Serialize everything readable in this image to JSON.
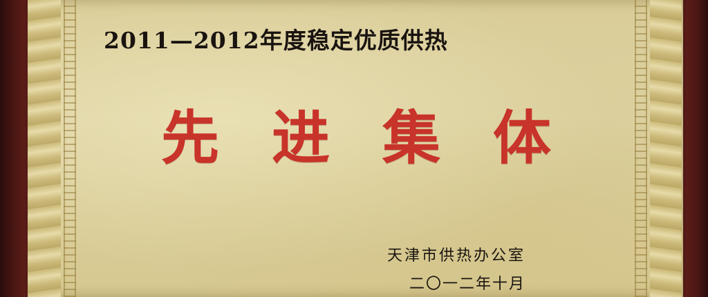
{
  "plaque": {
    "heading": "2011—2012年度稳定优质供热",
    "title_chars": [
      "先",
      "进",
      "集",
      "体"
    ],
    "issuer": "天津市供热办公室",
    "date": "二〇一二年十月"
  },
  "colors": {
    "frame": "#3a1210",
    "plate_gold": "#d9cc97",
    "title_red": "#c8332a",
    "text_dark": "#1a1410"
  }
}
